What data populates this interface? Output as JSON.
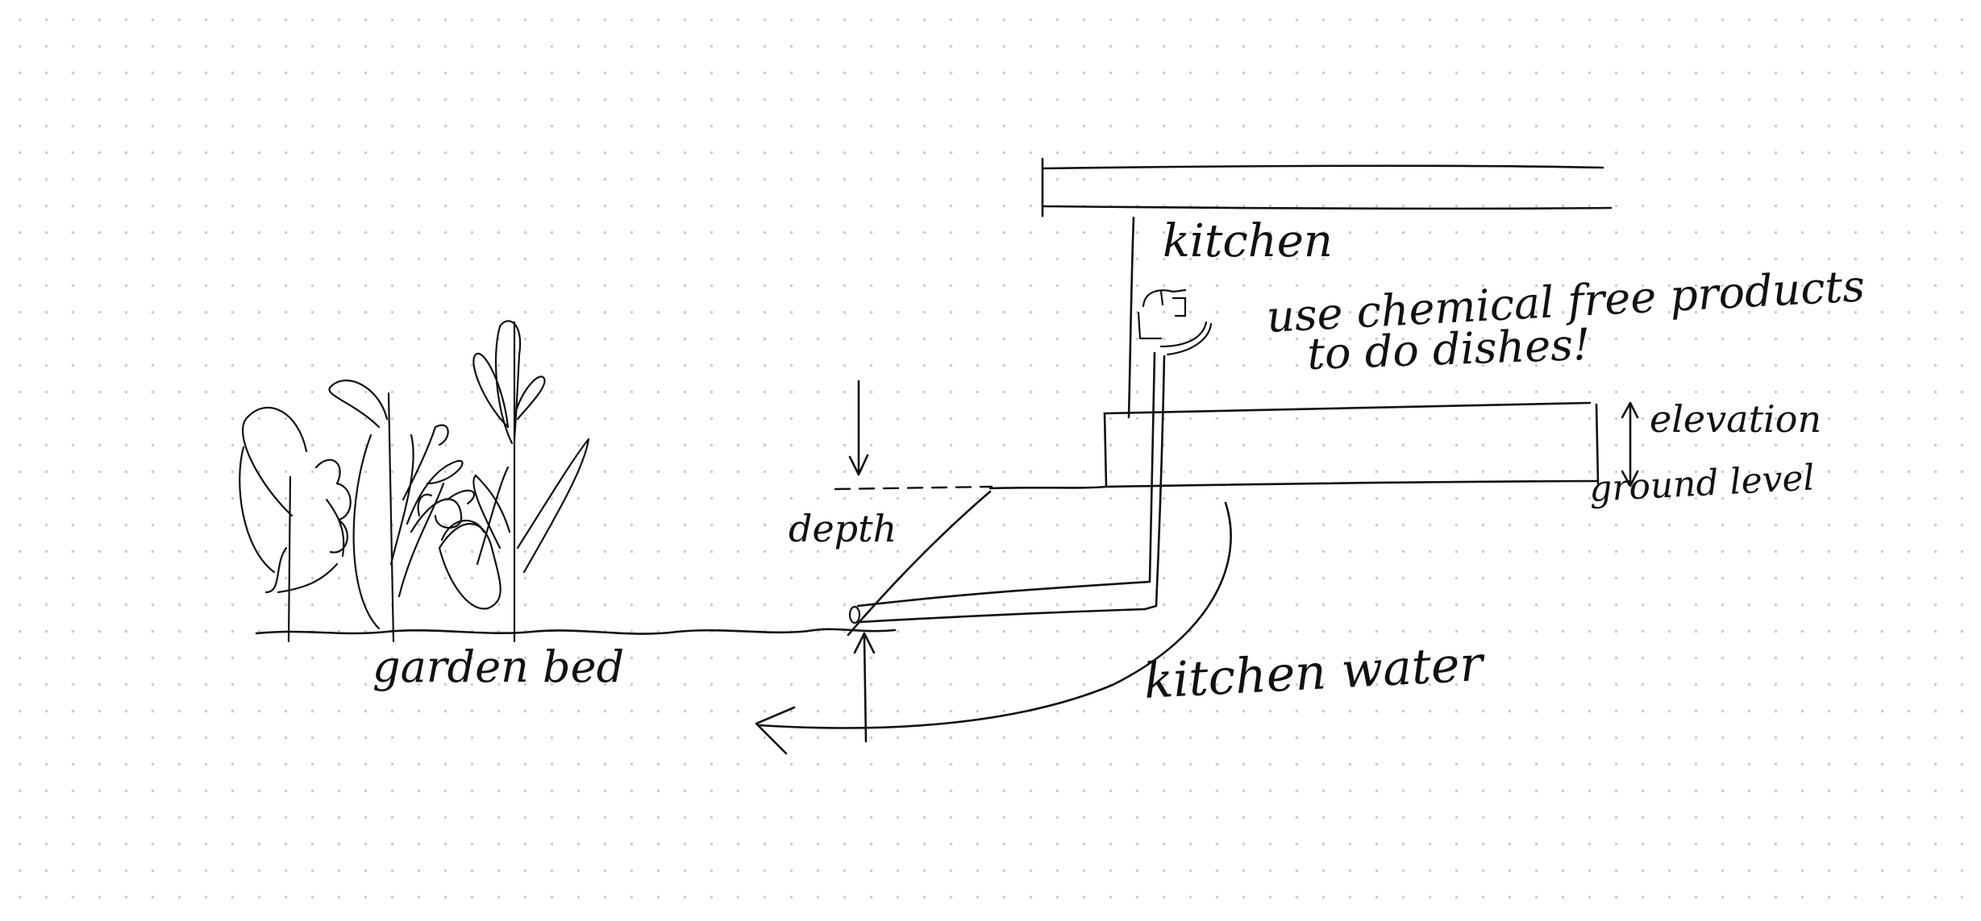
{
  "labels": {
    "kitchen": "kitchen",
    "note_line1": "use chemical free products",
    "note_line2": "to do dishes!",
    "elevation": "elevation",
    "ground_level": "ground level",
    "depth": "depth",
    "garden_bed": "garden bed",
    "kitchen_water": "kitchen water"
  },
  "colors": {
    "ink": "#111111",
    "background": "#ffffff",
    "grid_dot": "#c9cdd6"
  }
}
